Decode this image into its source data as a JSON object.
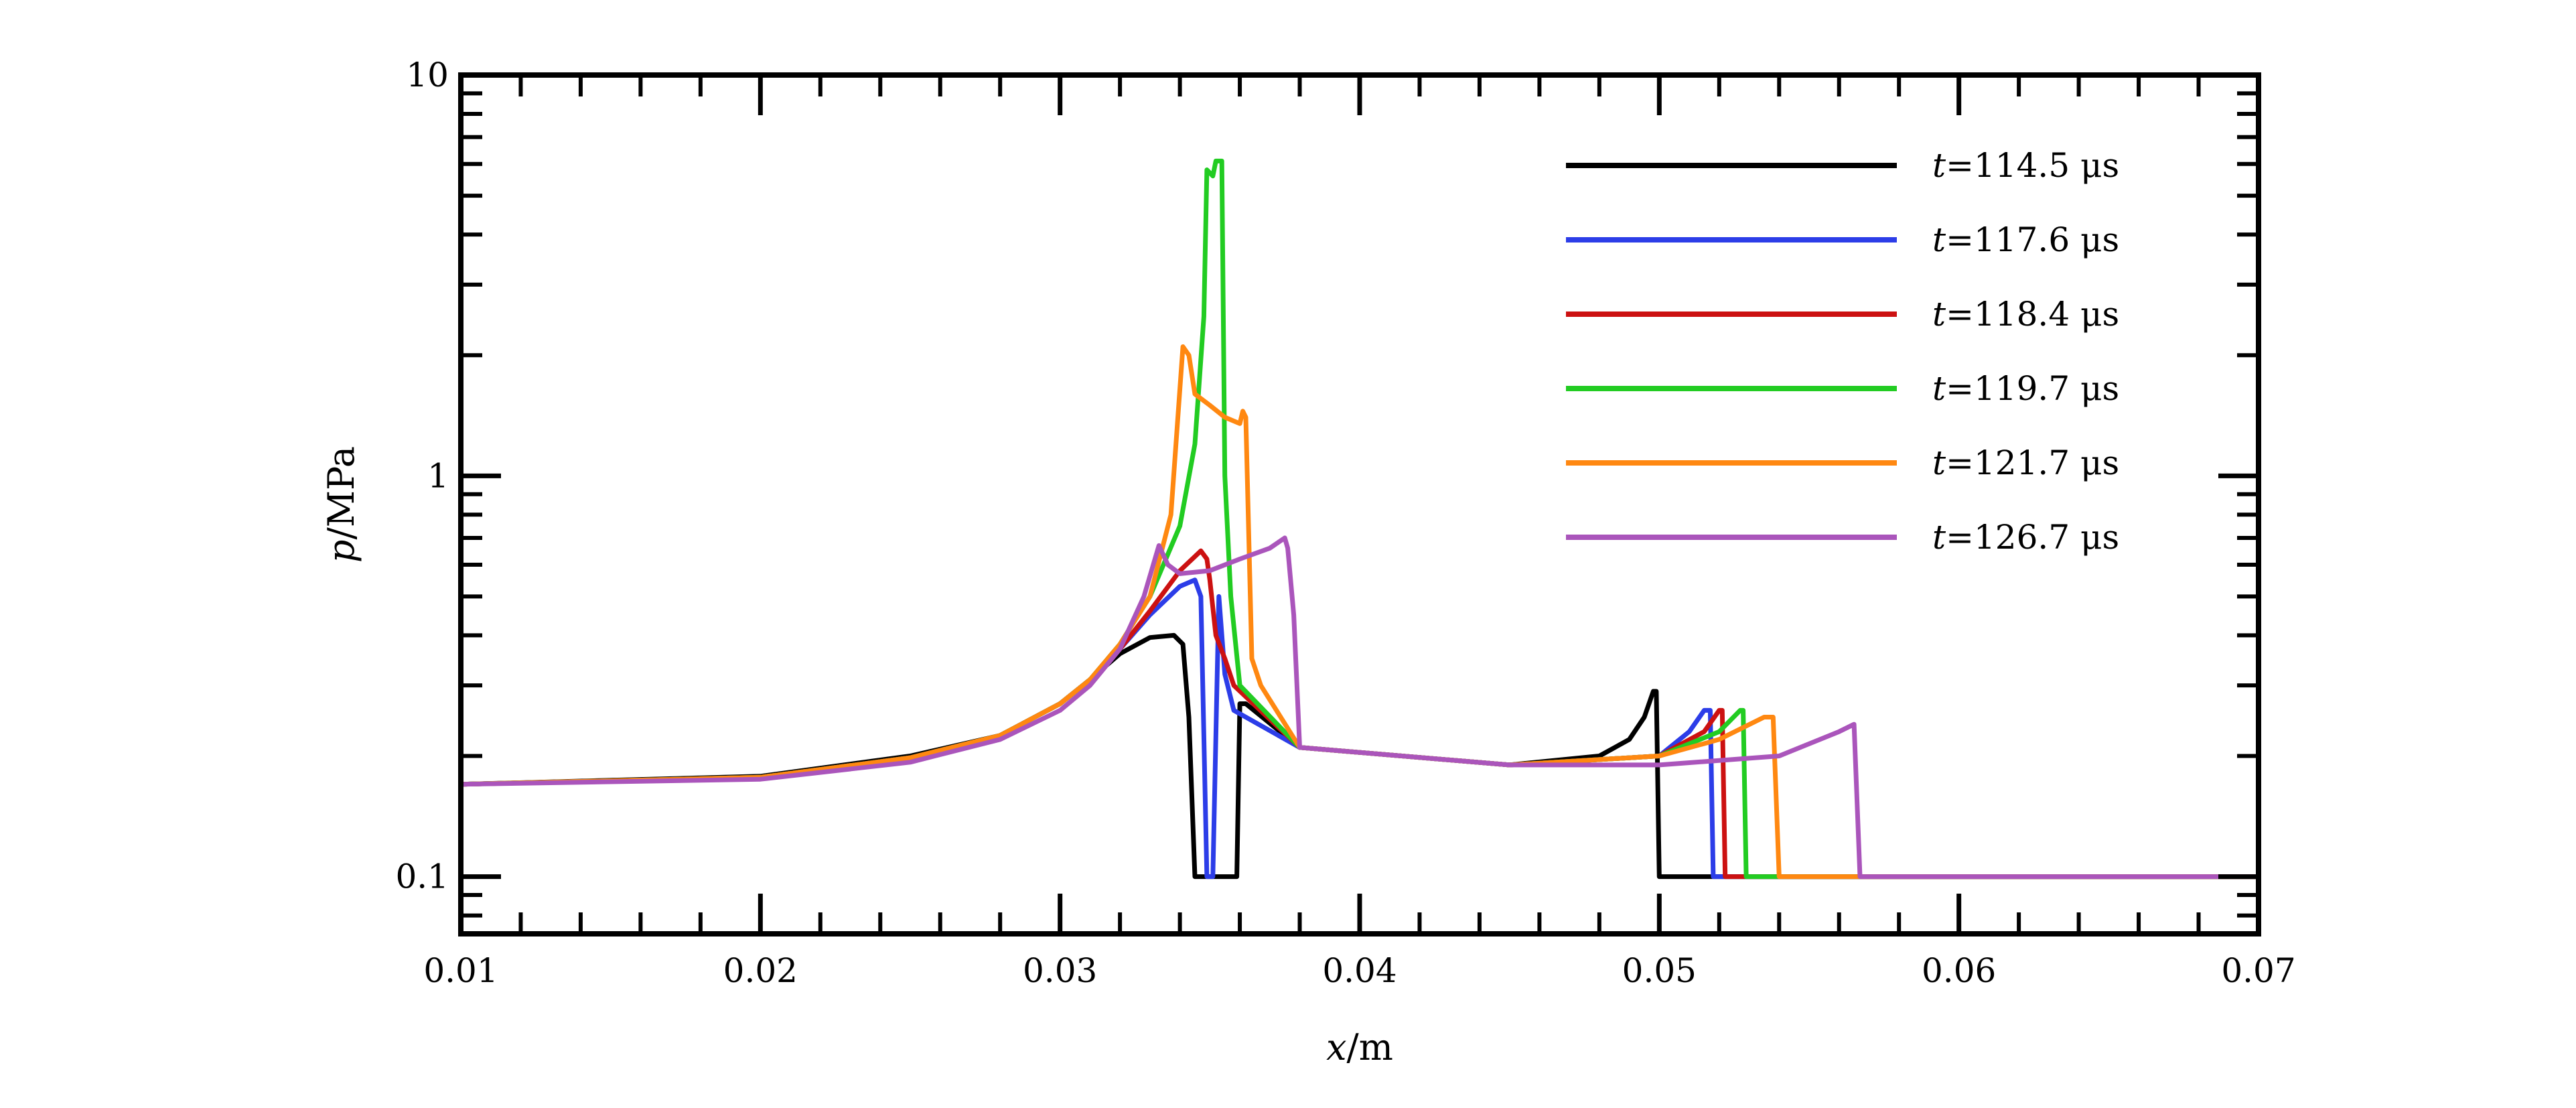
{
  "chart_data": {
    "type": "line",
    "title": "",
    "xlabel": {
      "var": "x",
      "unit": "/m"
    },
    "ylabel": {
      "var": "p",
      "unit": "/MPa"
    },
    "xlim": [
      0.01,
      0.07
    ],
    "ylim": [
      0.072,
      10
    ],
    "y_scale": "log",
    "grid": false,
    "legend_position": "top-right",
    "x_ticks": [
      "0.01",
      "0.02",
      "0.03",
      "0.04",
      "0.05",
      "0.06",
      "0.07"
    ],
    "x_tick_values": [
      0.01,
      0.02,
      0.03,
      0.04,
      0.05,
      0.06,
      0.07
    ],
    "y_ticks": [
      "0.1",
      "1",
      "10"
    ],
    "y_tick_values": [
      0.1,
      1,
      10
    ],
    "series": [
      {
        "var": "t",
        "rest": "=114.5 μs",
        "color": "#000000",
        "points": [
          [
            0.01,
            0.17
          ],
          [
            0.02,
            0.178
          ],
          [
            0.025,
            0.2
          ],
          [
            0.028,
            0.225
          ],
          [
            0.03,
            0.27
          ],
          [
            0.031,
            0.31
          ],
          [
            0.032,
            0.36
          ],
          [
            0.033,
            0.395
          ],
          [
            0.0338,
            0.4
          ],
          [
            0.0341,
            0.38
          ],
          [
            0.0343,
            0.25
          ],
          [
            0.0345,
            0.1
          ],
          [
            0.0359,
            0.1
          ],
          [
            0.036,
            0.27
          ],
          [
            0.0362,
            0.27
          ],
          [
            0.038,
            0.21
          ],
          [
            0.045,
            0.19
          ],
          [
            0.048,
            0.2
          ],
          [
            0.049,
            0.22
          ],
          [
            0.0495,
            0.25
          ],
          [
            0.0498,
            0.29
          ],
          [
            0.0499,
            0.29
          ],
          [
            0.05,
            0.1
          ],
          [
            0.07,
            0.1
          ]
        ]
      },
      {
        "var": "t",
        "rest": "=117.6 μs",
        "color": "#2c3de8",
        "points": [
          [
            0.01,
            0.17
          ],
          [
            0.02,
            0.177
          ],
          [
            0.025,
            0.198
          ],
          [
            0.028,
            0.225
          ],
          [
            0.03,
            0.27
          ],
          [
            0.031,
            0.31
          ],
          [
            0.032,
            0.37
          ],
          [
            0.033,
            0.45
          ],
          [
            0.034,
            0.53
          ],
          [
            0.0345,
            0.55
          ],
          [
            0.0347,
            0.5
          ],
          [
            0.0349,
            0.1
          ],
          [
            0.0351,
            0.1
          ],
          [
            0.0353,
            0.5
          ],
          [
            0.0355,
            0.32
          ],
          [
            0.0358,
            0.26
          ],
          [
            0.038,
            0.21
          ],
          [
            0.045,
            0.19
          ],
          [
            0.05,
            0.2
          ],
          [
            0.051,
            0.23
          ],
          [
            0.0515,
            0.26
          ],
          [
            0.0517,
            0.26
          ],
          [
            0.0518,
            0.1
          ],
          [
            0.07,
            0.1
          ]
        ]
      },
      {
        "var": "t",
        "rest": "=118.4 μs",
        "color": "#cc1111",
        "points": [
          [
            0.01,
            0.17
          ],
          [
            0.02,
            0.177
          ],
          [
            0.025,
            0.198
          ],
          [
            0.028,
            0.225
          ],
          [
            0.03,
            0.27
          ],
          [
            0.031,
            0.31
          ],
          [
            0.032,
            0.37
          ],
          [
            0.033,
            0.46
          ],
          [
            0.034,
            0.58
          ],
          [
            0.0347,
            0.65
          ],
          [
            0.0349,
            0.62
          ],
          [
            0.035,
            0.55
          ],
          [
            0.0352,
            0.4
          ],
          [
            0.0355,
            0.35
          ],
          [
            0.0358,
            0.3
          ],
          [
            0.038,
            0.21
          ],
          [
            0.045,
            0.19
          ],
          [
            0.05,
            0.2
          ],
          [
            0.0515,
            0.23
          ],
          [
            0.052,
            0.26
          ],
          [
            0.0521,
            0.26
          ],
          [
            0.0522,
            0.1
          ],
          [
            0.07,
            0.1
          ]
        ]
      },
      {
        "var": "t",
        "rest": "=119.7 μs",
        "color": "#22cc22",
        "points": [
          [
            0.01,
            0.17
          ],
          [
            0.02,
            0.177
          ],
          [
            0.025,
            0.198
          ],
          [
            0.028,
            0.225
          ],
          [
            0.03,
            0.27
          ],
          [
            0.031,
            0.31
          ],
          [
            0.032,
            0.38
          ],
          [
            0.033,
            0.5
          ],
          [
            0.034,
            0.75
          ],
          [
            0.0345,
            1.2
          ],
          [
            0.0348,
            2.5
          ],
          [
            0.0349,
            5.8
          ],
          [
            0.0351,
            5.6
          ],
          [
            0.0352,
            6.1
          ],
          [
            0.0354,
            6.1
          ],
          [
            0.0355,
            1.0
          ],
          [
            0.0357,
            0.5
          ],
          [
            0.036,
            0.3
          ],
          [
            0.038,
            0.21
          ],
          [
            0.045,
            0.19
          ],
          [
            0.05,
            0.2
          ],
          [
            0.052,
            0.23
          ],
          [
            0.0527,
            0.26
          ],
          [
            0.0528,
            0.26
          ],
          [
            0.0529,
            0.1
          ],
          [
            0.07,
            0.1
          ]
        ]
      },
      {
        "var": "t",
        "rest": "=121.7 μs",
        "color": "#ff8811",
        "points": [
          [
            0.01,
            0.17
          ],
          [
            0.02,
            0.177
          ],
          [
            0.025,
            0.198
          ],
          [
            0.028,
            0.225
          ],
          [
            0.03,
            0.27
          ],
          [
            0.031,
            0.31
          ],
          [
            0.032,
            0.38
          ],
          [
            0.033,
            0.5
          ],
          [
            0.0337,
            0.8
          ],
          [
            0.0341,
            2.1
          ],
          [
            0.0343,
            2.0
          ],
          [
            0.0345,
            1.6
          ],
          [
            0.035,
            1.5
          ],
          [
            0.0355,
            1.4
          ],
          [
            0.036,
            1.35
          ],
          [
            0.0361,
            1.45
          ],
          [
            0.0362,
            1.4
          ],
          [
            0.0364,
            0.35
          ],
          [
            0.0367,
            0.3
          ],
          [
            0.038,
            0.21
          ],
          [
            0.045,
            0.19
          ],
          [
            0.05,
            0.2
          ],
          [
            0.052,
            0.22
          ],
          [
            0.0535,
            0.25
          ],
          [
            0.0538,
            0.25
          ],
          [
            0.054,
            0.1
          ],
          [
            0.07,
            0.1
          ]
        ]
      },
      {
        "var": "t",
        "rest": "=126.7 μs",
        "color": "#aa55bb",
        "points": [
          [
            0.01,
            0.17
          ],
          [
            0.02,
            0.175
          ],
          [
            0.025,
            0.193
          ],
          [
            0.028,
            0.22
          ],
          [
            0.03,
            0.26
          ],
          [
            0.031,
            0.3
          ],
          [
            0.032,
            0.37
          ],
          [
            0.0328,
            0.5
          ],
          [
            0.0333,
            0.67
          ],
          [
            0.0336,
            0.6
          ],
          [
            0.034,
            0.57
          ],
          [
            0.035,
            0.58
          ],
          [
            0.036,
            0.62
          ],
          [
            0.037,
            0.66
          ],
          [
            0.0375,
            0.7
          ],
          [
            0.0376,
            0.66
          ],
          [
            0.0378,
            0.45
          ],
          [
            0.038,
            0.21
          ],
          [
            0.045,
            0.19
          ],
          [
            0.05,
            0.19
          ],
          [
            0.054,
            0.2
          ],
          [
            0.056,
            0.23
          ],
          [
            0.0565,
            0.24
          ],
          [
            0.0567,
            0.1
          ],
          [
            0.07,
            0.1
          ]
        ]
      }
    ]
  }
}
